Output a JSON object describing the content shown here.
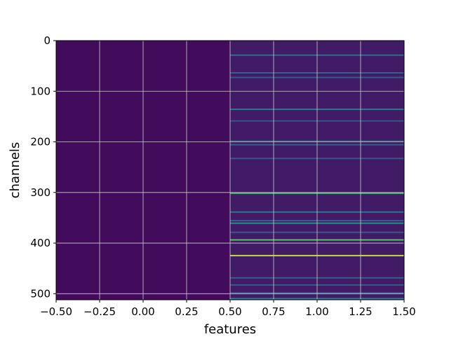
{
  "chart_data": {
    "type": "heatmap",
    "title": "",
    "xlabel": "features",
    "ylabel": "channels",
    "xlim": [
      -0.5,
      1.5
    ],
    "ylim": [
      512,
      0
    ],
    "y_inverted": true,
    "colormap": "viridis",
    "grid": true,
    "x_ticks": [
      {
        "value": -0.5,
        "label": "−0.50"
      },
      {
        "value": -0.25,
        "label": "−0.25"
      },
      {
        "value": 0.0,
        "label": "0.00"
      },
      {
        "value": 0.25,
        "label": "0.25"
      },
      {
        "value": 0.5,
        "label": "0.50"
      },
      {
        "value": 0.75,
        "label": "0.75"
      },
      {
        "value": 1.0,
        "label": "1.00"
      },
      {
        "value": 1.25,
        "label": "1.25"
      },
      {
        "value": 1.5,
        "label": "1.50"
      }
    ],
    "y_ticks": [
      {
        "value": 0,
        "label": "0"
      },
      {
        "value": 100,
        "label": "100"
      },
      {
        "value": 200,
        "label": "200"
      },
      {
        "value": 300,
        "label": "300"
      },
      {
        "value": 400,
        "label": "400"
      },
      {
        "value": 500,
        "label": "500"
      }
    ],
    "columns": [
      0,
      1
    ],
    "rows": 512,
    "column_0_level": 0.03,
    "column_1_base_level": 0.08,
    "column_1_highlights": [
      {
        "channel": 28,
        "value": 0.35
      },
      {
        "channel": 63,
        "value": 0.3
      },
      {
        "channel": 72,
        "value": 0.28
      },
      {
        "channel": 135,
        "value": 0.4
      },
      {
        "channel": 158,
        "value": 0.25
      },
      {
        "channel": 198,
        "value": 0.35
      },
      {
        "channel": 205,
        "value": 0.3
      },
      {
        "channel": 232,
        "value": 0.25
      },
      {
        "channel": 301,
        "value": 0.62
      },
      {
        "channel": 338,
        "value": 0.38
      },
      {
        "channel": 355,
        "value": 0.3
      },
      {
        "channel": 360,
        "value": 0.5
      },
      {
        "channel": 378,
        "value": 0.28
      },
      {
        "channel": 393,
        "value": 0.72
      },
      {
        "channel": 424,
        "value": 0.9
      },
      {
        "channel": 468,
        "value": 0.3
      },
      {
        "channel": 482,
        "value": 0.28
      },
      {
        "channel": 498,
        "value": 0.35
      },
      {
        "channel": 509,
        "value": 0.42
      }
    ],
    "colors": {
      "low": "#440154",
      "grid": "#cccccc"
    }
  }
}
